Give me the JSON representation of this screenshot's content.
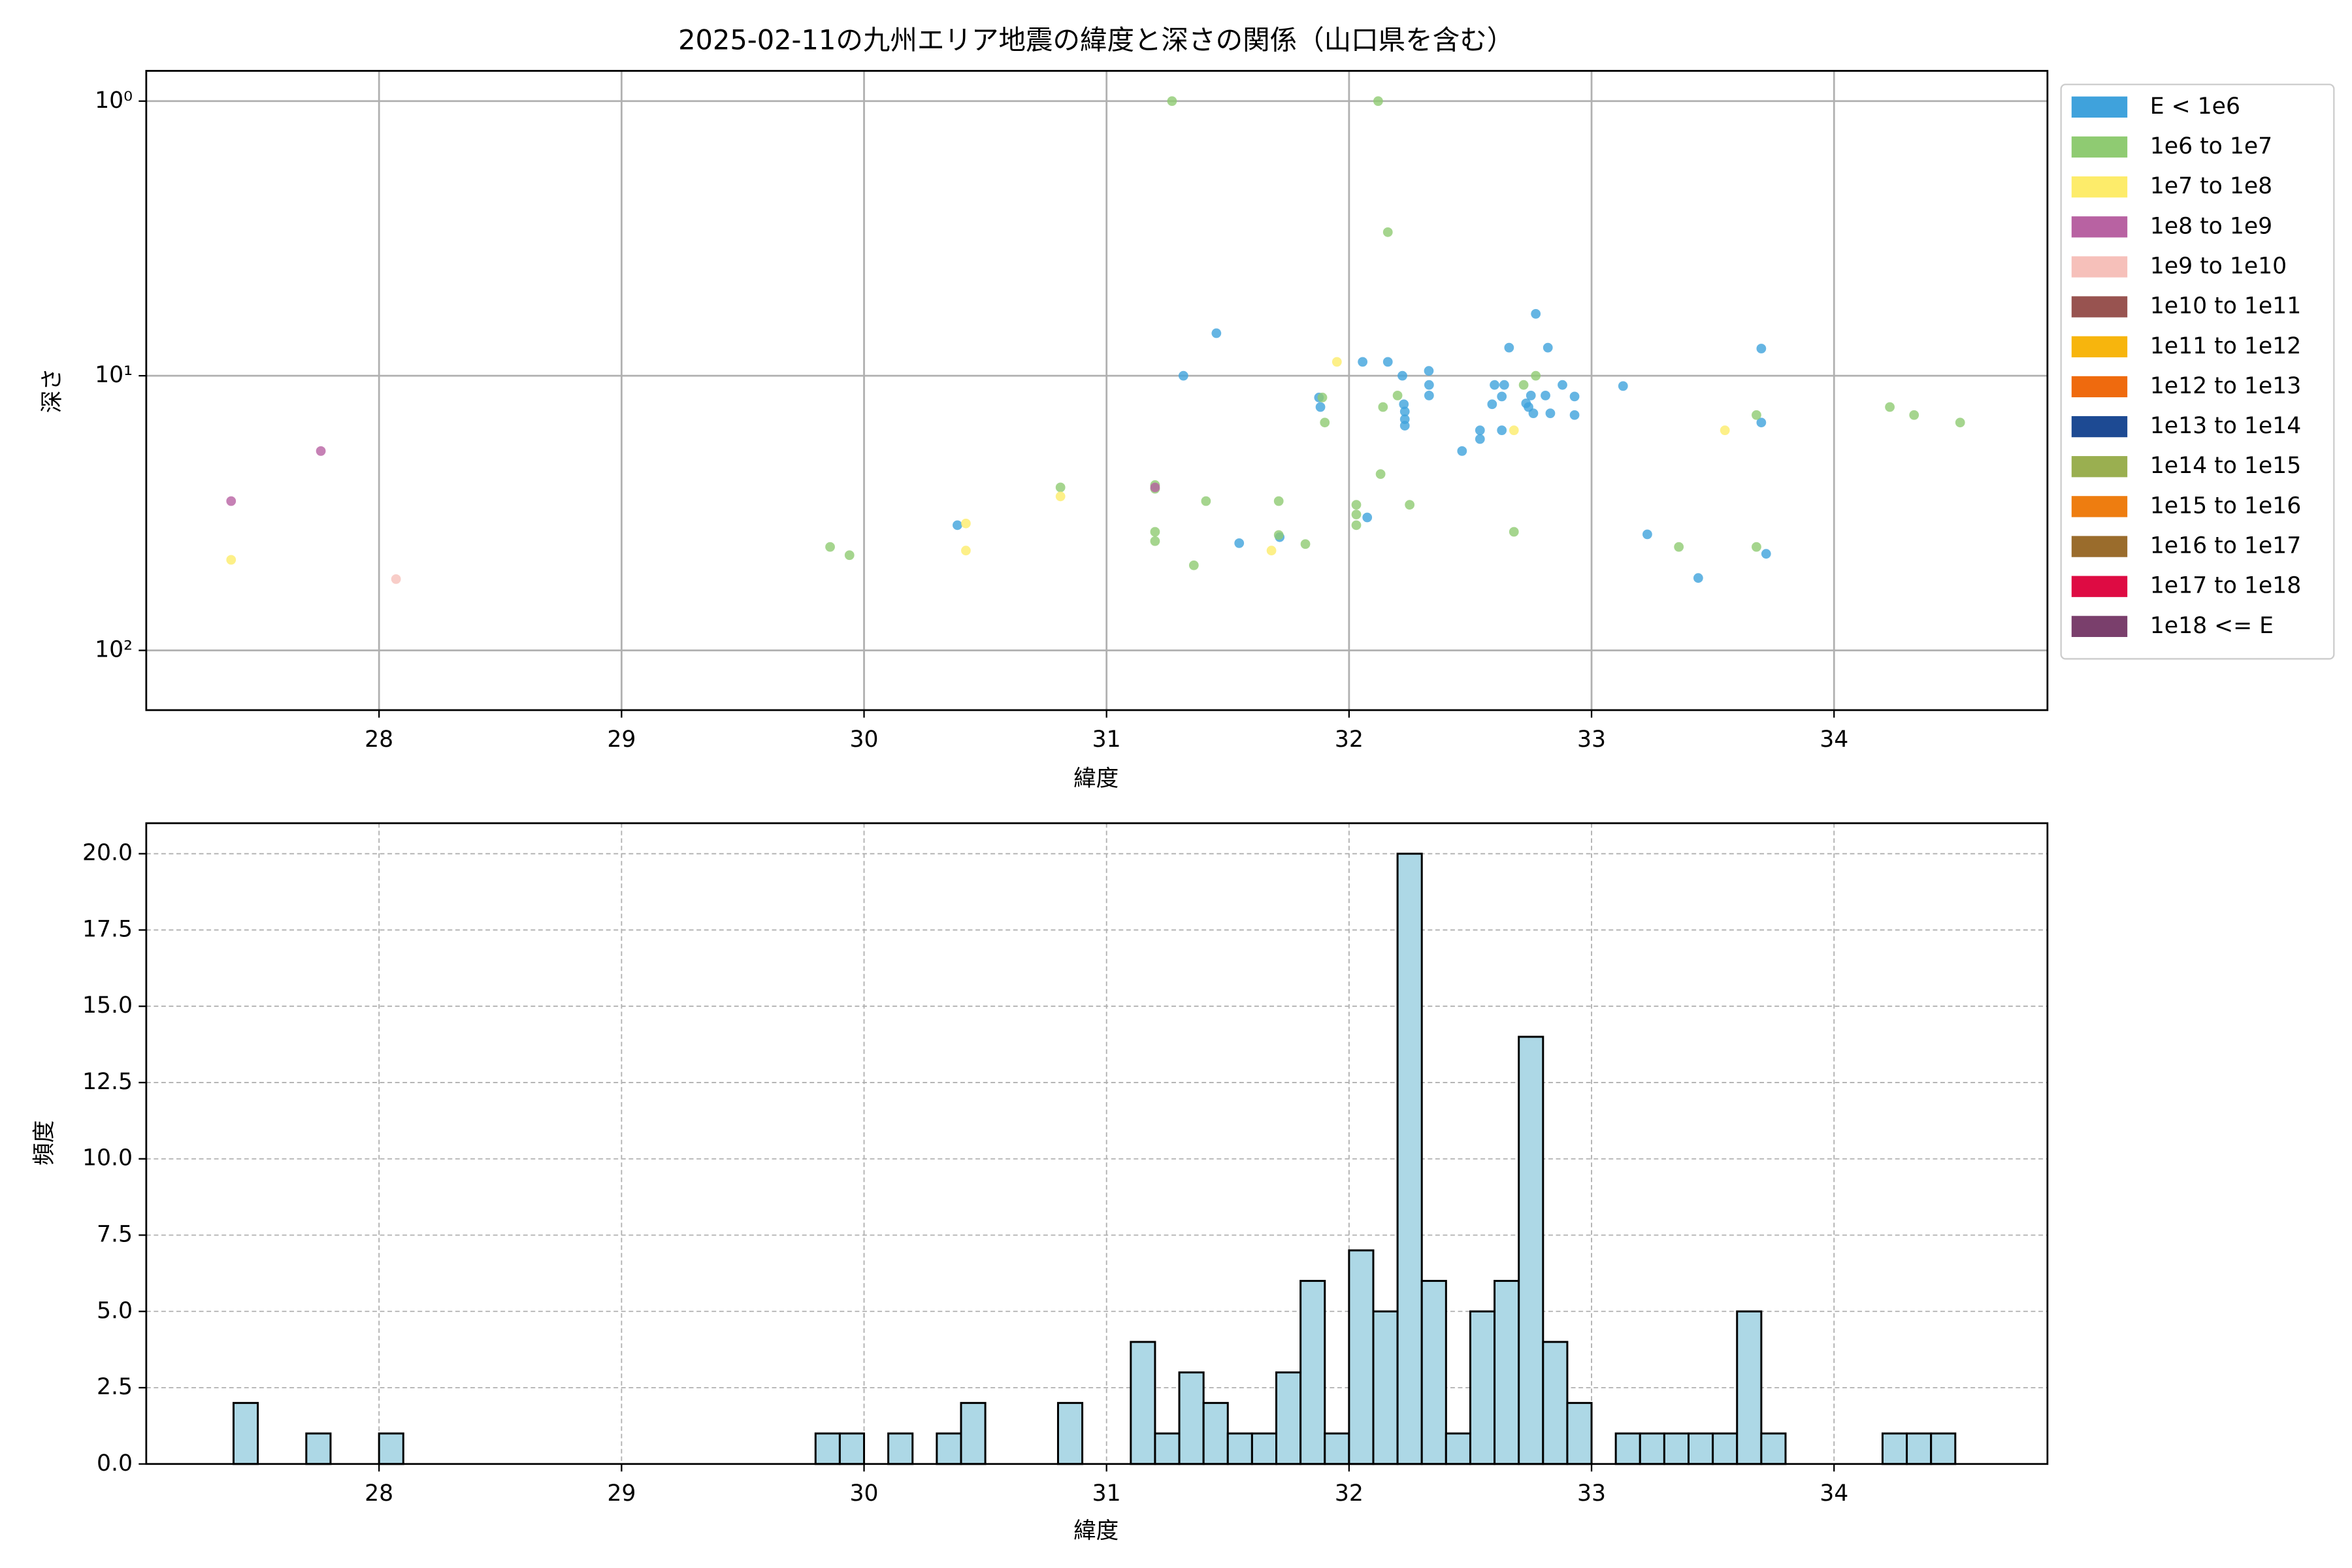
{
  "chart_data": [
    {
      "type": "scatter",
      "title": "2025-02-11の九州エリア地震の緯度と深さの関係（山口県を含む）",
      "xlabel": "緯度",
      "ylabel": "深さ",
      "xlim": [
        27.04,
        34.88
      ],
      "ylim": [
        0.776,
        165
      ],
      "log_y": true,
      "y_inverted": true,
      "grid": true,
      "legend_loc": "outside-right",
      "xticks": [
        28,
        29,
        30,
        31,
        32,
        33,
        34
      ],
      "yticks": [
        {
          "value": 1,
          "label": "10⁰"
        },
        {
          "value": 10,
          "label": "10¹"
        },
        {
          "value": 100,
          "label": "10²"
        }
      ],
      "series": [
        {
          "name": "E < 1e6",
          "color": "#3fa2dc",
          "x": [
            30.385,
            31.317,
            31.453,
            31.547,
            31.714,
            31.876,
            31.882,
            32.056,
            32.075,
            32.16,
            32.22,
            32.226,
            32.23,
            32.23,
            32.23,
            32.329,
            32.33,
            32.33,
            32.466,
            32.54,
            32.54,
            32.59,
            32.6,
            32.63,
            32.64,
            32.63,
            32.66,
            32.73,
            32.74,
            32.75,
            32.76,
            32.77,
            32.81,
            32.82,
            32.83,
            32.88,
            32.93,
            32.93,
            33.13,
            33.23,
            33.44,
            33.7,
            33.7,
            33.72
          ],
          "values": [
            35,
            10,
            7.0,
            40.7,
            38.7,
            12,
            13,
            8.9,
            32.8,
            8.9,
            10,
            12.7,
            13.5,
            14.4,
            15.2,
            9.6,
            10.8,
            11.8,
            18.8,
            15.8,
            17.0,
            12.7,
            10.8,
            11.9,
            10.8,
            15.8,
            7.9,
            12.6,
            13,
            11.8,
            13.7,
            5.95,
            11.8,
            7.9,
            13.7,
            10.8,
            11.9,
            13.9,
            10.9,
            37.8,
            54.5,
            7.96,
            14.8,
            44.5
          ]
        },
        {
          "name": "1e6 to 1e7",
          "color": "#8fcb72",
          "x": [
            31.27,
            32.12,
            32.16,
            29.86,
            29.94,
            30.81,
            31.2,
            31.2,
            31.2,
            31.2,
            31.36,
            31.41,
            31.71,
            31.71,
            31.82,
            31.89,
            31.9,
            32.03,
            32.03,
            32.03,
            32.13,
            32.14,
            32.2,
            32.25,
            32.68,
            32.72,
            32.77,
            33.36,
            33.68,
            33.68,
            34.23,
            34.33,
            34.52
          ],
          "values": [
            1.0,
            1.0,
            3.0,
            42,
            45,
            25.5,
            25,
            25.8,
            37,
            40,
            49,
            28.6,
            28.6,
            38,
            41,
            12.0,
            14.8,
            29.5,
            32,
            35,
            22.8,
            13,
            11.8,
            29.5,
            37,
            10.8,
            10,
            42,
            13.9,
            42,
            13,
            13.9,
            14.8
          ]
        },
        {
          "name": "1e7 to 1e8",
          "color": "#fdec6a",
          "x": [
            27.39,
            30.42,
            30.42,
            30.81,
            31.68,
            31.95,
            32.68,
            33.55
          ],
          "values": [
            46.8,
            34.5,
            43.3,
            27.5,
            43.3,
            8.9,
            15.8,
            15.8
          ]
        },
        {
          "name": "1e8 to 1e9",
          "color": "#b862a2",
          "x": [
            27.39,
            27.76,
            31.2
          ],
          "values": [
            28.6,
            18.8,
            25.5
          ]
        },
        {
          "name": "1e9 to 1e10",
          "color": "#f6c0ba",
          "x": [
            28.07
          ],
          "values": [
            55
          ]
        },
        {
          "name": "1e10 to 1e11",
          "color": "#985350",
          "x": [],
          "values": []
        },
        {
          "name": "1e11 to 1e12",
          "color": "#f7b50d",
          "x": [],
          "values": []
        },
        {
          "name": "1e12 to 1e13",
          "color": "#ef6a0e",
          "x": [],
          "values": []
        },
        {
          "name": "1e13 to 1e14",
          "color": "#1d4a93",
          "x": [],
          "values": []
        },
        {
          "name": "1e14 to 1e15",
          "color": "#9aaf50",
          "x": [],
          "values": []
        },
        {
          "name": "1e15 to 1e16",
          "color": "#ee7d10",
          "x": [],
          "values": []
        },
        {
          "name": "1e16 to 1e17",
          "color": "#9a6c2c",
          "x": [],
          "values": []
        },
        {
          "name": "1e17 to 1e18",
          "color": "#de0b43",
          "x": [],
          "values": []
        },
        {
          "name": "1e18 <= E",
          "color": "#7a3f6c",
          "x": [],
          "values": []
        }
      ]
    },
    {
      "type": "histogram",
      "xlabel": "緯度",
      "ylabel": "頻度",
      "xlim": [
        27.04,
        34.88
      ],
      "ylim": [
        0,
        21
      ],
      "grid": "dashed",
      "color": "#add8e6",
      "edgecolor": "#000000",
      "xticks": [
        28,
        29,
        30,
        31,
        32,
        33,
        34
      ],
      "yticks": [
        {
          "value": 0,
          "label": "0.0"
        },
        {
          "value": 2.5,
          "label": "2.5"
        },
        {
          "value": 5,
          "label": "5.0"
        },
        {
          "value": 7.5,
          "label": "7.5"
        },
        {
          "value": 10,
          "label": "10.0"
        },
        {
          "value": 12.5,
          "label": "12.5"
        },
        {
          "value": 15,
          "label": "15.0"
        },
        {
          "value": 17.5,
          "label": "17.5"
        },
        {
          "value": 20,
          "label": "20.0"
        }
      ],
      "bins": [
        27.4,
        27.5,
        27.6,
        27.7,
        27.8,
        27.9,
        28.0,
        28.1,
        28.2,
        28.3,
        28.4,
        28.5,
        28.6,
        28.7,
        28.8,
        28.9,
        29.0,
        29.1,
        29.2,
        29.3,
        29.4,
        29.5,
        29.6,
        29.7,
        29.8,
        29.9,
        30.0,
        30.1,
        30.2,
        30.3,
        30.4,
        30.5,
        30.6,
        30.7,
        30.8,
        30.9,
        31.0,
        31.1,
        31.2,
        31.3,
        31.4,
        31.5,
        31.6,
        31.7,
        31.8,
        31.9,
        32.0,
        32.1,
        32.2,
        32.3,
        32.4,
        32.5,
        32.6,
        32.7,
        32.8,
        32.9,
        33.0,
        33.1,
        33.2,
        33.3,
        33.4,
        33.5,
        33.6,
        33.7,
        33.8,
        33.9,
        34.0,
        34.1,
        34.2,
        34.3,
        34.4,
        34.5
      ],
      "values": [
        2,
        0,
        0,
        1,
        0,
        0,
        1,
        0,
        0,
        0,
        0,
        0,
        0,
        0,
        0,
        0,
        0,
        0,
        0,
        0,
        0,
        0,
        0,
        0,
        1,
        1,
        0,
        1,
        0,
        1,
        2,
        0,
        0,
        0,
        2,
        0,
        0,
        4,
        1,
        3,
        2,
        1,
        1,
        3,
        6,
        1,
        7,
        5,
        20,
        6,
        1,
        5,
        6,
        14,
        4,
        2,
        0,
        1,
        1,
        1,
        1,
        1,
        5,
        1,
        0,
        0,
        0,
        0,
        1,
        1,
        1
      ]
    }
  ]
}
